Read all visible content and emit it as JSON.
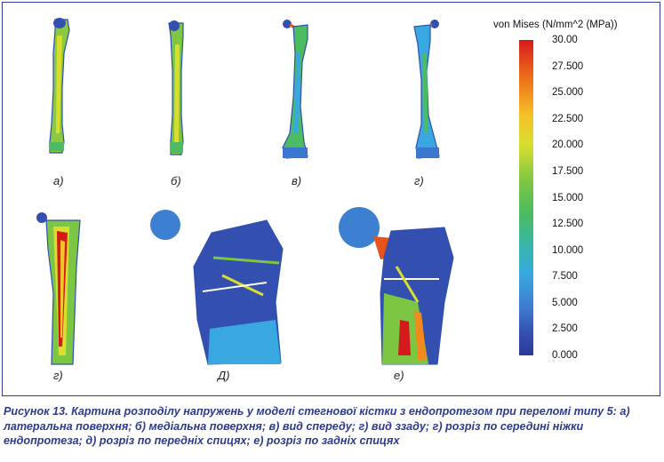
{
  "figure": {
    "sublabels": {
      "a": "а)",
      "b": "б)",
      "v": "в)",
      "g1": "г)",
      "g2": "г)",
      "d": "Д)",
      "e": "е)"
    },
    "colorbar": {
      "title": "von Mises (N/mm^2 (MPa))",
      "ticks": [
        "30.00",
        "27.500",
        "25.000",
        "22.500",
        "20.000",
        "17.500",
        "15.000",
        "12.500",
        "10.000",
        "7.500",
        "5.000",
        "2.500",
        "0.000"
      ],
      "colors": [
        "#d41a1a",
        "#f08a1c",
        "#d9de2e",
        "#4cbb62",
        "#3aa8e0",
        "#2b3a98"
      ]
    }
  },
  "caption": {
    "text": "Рисунок 13. Картина розподілу напружень у моделі стегнової кістки з ендопротезом при переломі типу 5: а) латеральна поверхня; б) медіальна поверхня; в) вид спереду; г) вид ззаду; г) розріз по середині ніжки ендопротеза; д) розріз по передніх спицях; е) розріз по задніх спицях"
  }
}
